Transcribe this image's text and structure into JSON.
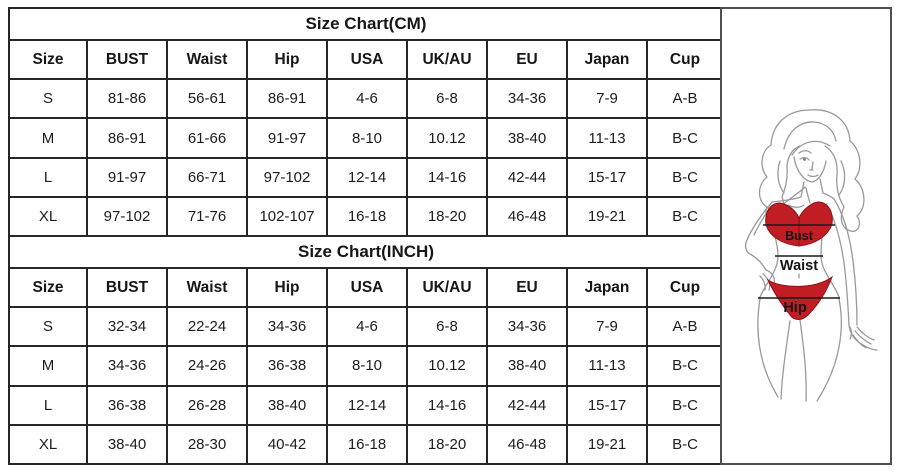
{
  "page": {
    "background": "#ffffff",
    "table_border_color": "#262626",
    "panel_border_color": "#4f4f4f"
  },
  "size_chart": {
    "column_headers": [
      "Size",
      "BUST",
      "Waist",
      "Hip",
      "USA",
      "UK/AU",
      "EU",
      "Japan",
      "Cup"
    ],
    "sections": [
      {
        "title": "Size Chart(CM)",
        "rows": [
          [
            "S",
            "81-86",
            "56-61",
            "86-91",
            "4-6",
            "6-8",
            "34-36",
            "7-9",
            "A-B"
          ],
          [
            "M",
            "86-91",
            "61-66",
            "91-97",
            "8-10",
            "10.12",
            "38-40",
            "11-13",
            "B-C"
          ],
          [
            "L",
            "91-97",
            "66-71",
            "97-102",
            "12-14",
            "14-16",
            "42-44",
            "15-17",
            "B-C"
          ],
          [
            "XL",
            "97-102",
            "71-76",
            "102-107",
            "16-18",
            "18-20",
            "46-48",
            "19-21",
            "B-C"
          ]
        ]
      },
      {
        "title": "Size Chart(INCH)",
        "rows": [
          [
            "S",
            "32-34",
            "22-24",
            "34-36",
            "4-6",
            "6-8",
            "34-36",
            "7-9",
            "A-B"
          ],
          [
            "M",
            "34-36",
            "24-26",
            "36-38",
            "8-10",
            "10.12",
            "38-40",
            "11-13",
            "B-C"
          ],
          [
            "L",
            "36-38",
            "26-28",
            "38-40",
            "12-14",
            "14-16",
            "42-44",
            "15-17",
            "B-C"
          ],
          [
            "XL",
            "38-40",
            "28-30",
            "40-42",
            "16-18",
            "18-20",
            "46-48",
            "19-21",
            "B-C"
          ]
        ]
      }
    ]
  },
  "figure": {
    "bust_label": "Bust",
    "waist_label": "Waist",
    "hip_label": "Hip",
    "bikini_color": "#c01e24",
    "bikini_edge_color": "#8e1216",
    "sketch_line_color": "#999999"
  }
}
